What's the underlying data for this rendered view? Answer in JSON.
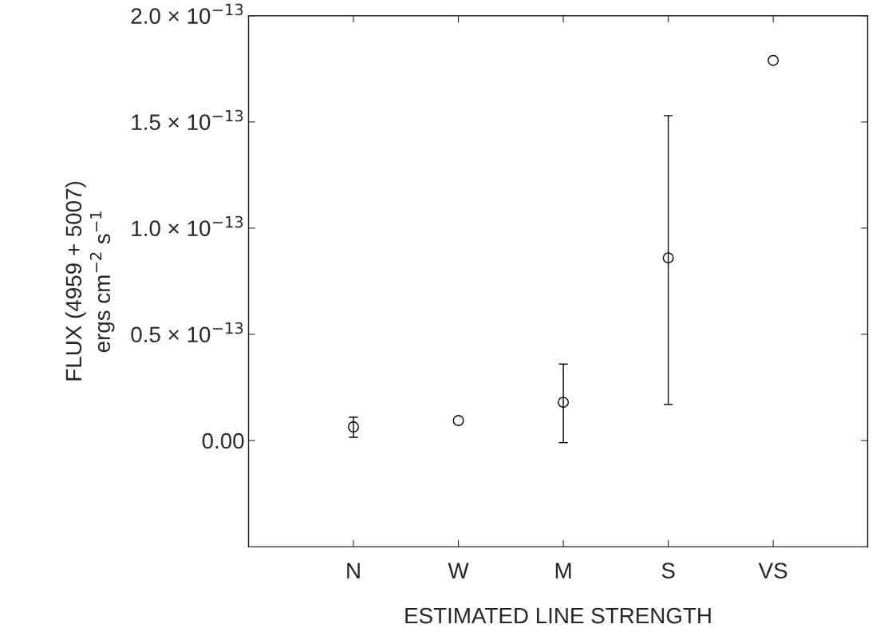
{
  "chart_data": {
    "type": "scatter",
    "xlabel": "ESTIMATED LINE STRENGTH",
    "ylabel": "FLUX (4959 + 5007)\nergs cm$^{−2}$ s$^{−1}$",
    "categories": [
      "N",
      "W",
      "M",
      "S",
      "VS"
    ],
    "series": [
      {
        "color": "#000000",
        "values": [
          6.4e-15,
          9.4e-15,
          1.8e-14,
          8.6e-14,
          1.79e-13
        ],
        "errors": [
          [
            1.5e-15,
            1.1e-14
          ],
          null,
          [
            -1e-15,
            3.6e-14
          ],
          [
            1.7e-14,
            1.53e-13
          ],
          null
        ]
      }
    ],
    "ylim": [
      -5e-14,
      2e-13
    ],
    "yticks": [
      {
        "value": 0,
        "label": "0.00"
      },
      {
        "value": 5e-14,
        "label": "0.5 × 10$^{−13}$"
      },
      {
        "value": 1e-13,
        "label": "1.0 × 10$^{−13}$"
      },
      {
        "value": 1.5e-13,
        "label": "1.5 × 10$^{−13}$"
      },
      {
        "value": 2e-13,
        "label": "2.0 × 10$^{−13}$"
      }
    ],
    "marker": "circle",
    "grid": false,
    "legend": false
  }
}
